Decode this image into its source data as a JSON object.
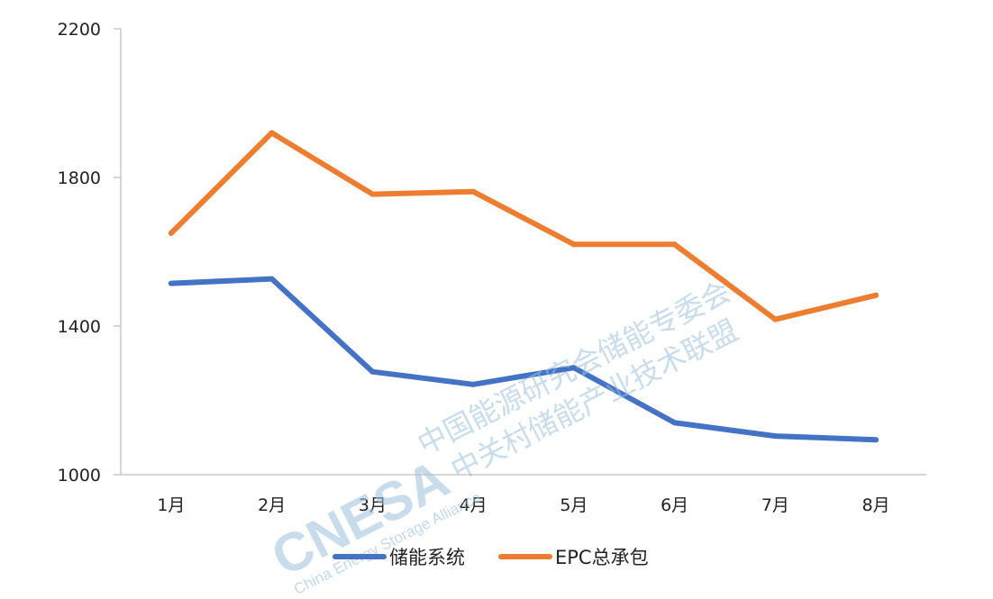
{
  "chart_data": {
    "type": "line",
    "categories": [
      "1月",
      "2月",
      "3月",
      "4月",
      "5月",
      "6月",
      "7月",
      "8月"
    ],
    "series": [
      {
        "name": "储能系统",
        "color": "#4472c4",
        "values": [
          1515,
          1527,
          1277,
          1243,
          1288,
          1140,
          1104,
          1094
        ]
      },
      {
        "name": "EPC总承包",
        "color": "#ed7d31",
        "values": [
          1650,
          1920,
          1755,
          1762,
          1620,
          1620,
          1418,
          1483
        ]
      }
    ],
    "ylim": [
      1000,
      2200
    ],
    "yticks": [
      1000,
      1400,
      1800,
      2200
    ],
    "grid": false,
    "legend_position": "bottom"
  },
  "watermark": {
    "logo": "CNESA",
    "tagline": "China Energy Storage Alliance",
    "line1": "中国能源研究会储能专委会",
    "line2": "中关村储能产业技术联盟"
  }
}
